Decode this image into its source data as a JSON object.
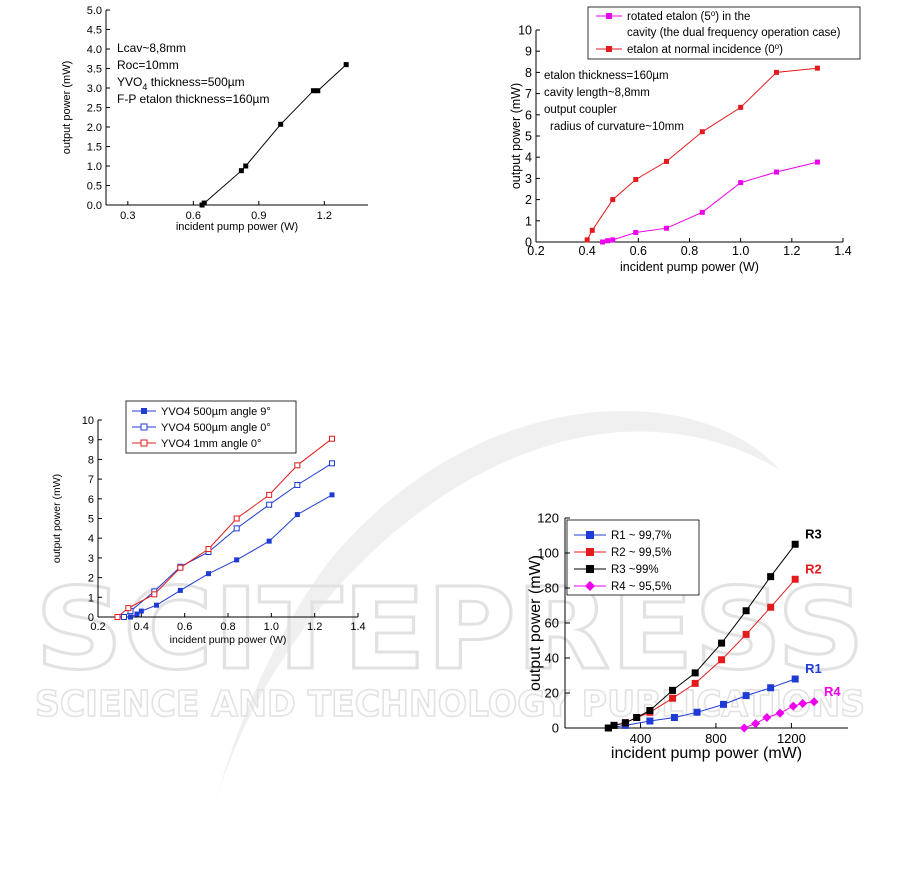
{
  "colors": {
    "black": "#000000",
    "red": "#e41a1c",
    "magenta": "#ee00ee",
    "blue": "#1f3bd6",
    "watermark": "#e4e4e4"
  },
  "watermark": {
    "big": "SCITEPRESS",
    "sub": "SCIENCE AND TECHNOLOGY PUBLICATIONS"
  },
  "chart_data": [
    {
      "type": "line",
      "xlabel": "incident pump power (W)",
      "ylabel": "output power (mW)",
      "xlim": [
        0.2,
        1.4
      ],
      "ylim": [
        0,
        5
      ],
      "xticks": [
        {
          "v": 0.3,
          "t": "0.3"
        },
        {
          "v": 0.6,
          "t": "0.6"
        },
        {
          "v": 0.9,
          "t": "0.9"
        },
        {
          "v": 1.2,
          "t": "1.2"
        }
      ],
      "yticks": [
        {
          "v": 0,
          "t": "0.0"
        },
        {
          "v": 0.5,
          "t": "0.5"
        },
        {
          "v": 1,
          "t": "1.0"
        },
        {
          "v": 1.5,
          "t": "1.5"
        },
        {
          "v": 2,
          "t": "2.0"
        },
        {
          "v": 2.5,
          "t": "2.5"
        },
        {
          "v": 3,
          "t": "3.0"
        },
        {
          "v": 3.5,
          "t": "3.5"
        },
        {
          "v": 4,
          "t": "4.0"
        },
        {
          "v": 4.5,
          "t": "4.5"
        },
        {
          "v": 5,
          "t": "5.0"
        }
      ],
      "annotations": [
        "Lcav~8,8mm",
        "Roc=10mm",
        "YVO4 thickness=500µm",
        "F-P etalon thickness=160µm"
      ],
      "series": [
        {
          "color": "#000000",
          "marker": "square-filled",
          "x": [
            0.64,
            0.65,
            0.82,
            0.84,
            1.0,
            1.15,
            1.17,
            1.3
          ],
          "y": [
            0.0,
            0.05,
            0.88,
            1.0,
            2.07,
            2.93,
            2.93,
            3.6
          ]
        }
      ]
    },
    {
      "type": "line",
      "xlabel": "incident pump power (W)",
      "ylabel": "output power (mW)",
      "xlim": [
        0.2,
        1.4
      ],
      "ylim": [
        0,
        10
      ],
      "xticks": [
        {
          "v": 0.2,
          "t": "0.2"
        },
        {
          "v": 0.4,
          "t": "0.4"
        },
        {
          "v": 0.6,
          "t": "0.6"
        },
        {
          "v": 0.8,
          "t": "0.8"
        },
        {
          "v": 1.0,
          "t": "1.0"
        },
        {
          "v": 1.2,
          "t": "1.2"
        },
        {
          "v": 1.4,
          "t": "1.4"
        }
      ],
      "yticks": [
        {
          "v": 0,
          "t": "0"
        },
        {
          "v": 1,
          "t": "1"
        },
        {
          "v": 2,
          "t": "2"
        },
        {
          "v": 3,
          "t": "3"
        },
        {
          "v": 4,
          "t": "4"
        },
        {
          "v": 5,
          "t": "5"
        },
        {
          "v": 6,
          "t": "6"
        },
        {
          "v": 7,
          "t": "7"
        },
        {
          "v": 8,
          "t": "8"
        },
        {
          "v": 9,
          "t": "9"
        },
        {
          "v": 10,
          "t": "10"
        }
      ],
      "legend": "top-right",
      "annotations": [
        "etalon thickness=160µm",
        "cavity length~8,8mm",
        "output coupler",
        "radius of curvature~10mm"
      ],
      "series": [
        {
          "name": "rotated etalon (5°) in the cavity (the dual frequency operation case)",
          "color": "#ee00ee",
          "marker": "square-filled",
          "x": [
            0.46,
            0.48,
            0.5,
            0.59,
            0.71,
            0.85,
            1.0,
            1.14,
            1.3
          ],
          "y": [
            0.0,
            0.06,
            0.1,
            0.45,
            0.65,
            1.4,
            2.8,
            3.3,
            3.77
          ]
        },
        {
          "name": "etalon at normal incidence (0°)",
          "color": "#e41a1c",
          "marker": "square-filled",
          "x": [
            0.4,
            0.42,
            0.5,
            0.59,
            0.71,
            0.85,
            1.0,
            1.14,
            1.3
          ],
          "y": [
            0.1,
            0.55,
            2.0,
            2.95,
            3.8,
            5.2,
            6.35,
            8.0,
            8.2
          ]
        }
      ]
    },
    {
      "type": "line",
      "xlabel": "incident pump power (W)",
      "ylabel": "output power (mW)",
      "xlim": [
        0.2,
        1.4
      ],
      "ylim": [
        0,
        10
      ],
      "xticks": [
        {
          "v": 0.2,
          "t": "0.2"
        },
        {
          "v": 0.4,
          "t": "0.4"
        },
        {
          "v": 0.6,
          "t": "0.6"
        },
        {
          "v": 0.8,
          "t": "0.8"
        },
        {
          "v": 1.0,
          "t": "1.0"
        },
        {
          "v": 1.2,
          "t": "1.2"
        },
        {
          "v": 1.4,
          "t": "1.4"
        }
      ],
      "yticks": [
        {
          "v": 0,
          "t": "0"
        },
        {
          "v": 1,
          "t": "1"
        },
        {
          "v": 2,
          "t": "2"
        },
        {
          "v": 3,
          "t": "3"
        },
        {
          "v": 4,
          "t": "4"
        },
        {
          "v": 5,
          "t": "5"
        },
        {
          "v": 6,
          "t": "6"
        },
        {
          "v": 7,
          "t": "7"
        },
        {
          "v": 8,
          "t": "8"
        },
        {
          "v": 9,
          "t": "9"
        },
        {
          "v": 10,
          "t": "10"
        }
      ],
      "legend": "top-left",
      "series": [
        {
          "name": "YVO4 500µm angle 9°",
          "color": "#1f3bd6",
          "marker": "square-filled",
          "x": [
            0.35,
            0.38,
            0.4,
            0.47,
            0.58,
            0.71,
            0.84,
            0.99,
            1.12,
            1.28
          ],
          "y": [
            0.0,
            0.15,
            0.3,
            0.6,
            1.35,
            2.2,
            2.9,
            3.85,
            5.2,
            6.2
          ]
        },
        {
          "name": "YVO4 500µm angle 0°",
          "color": "#1f3bd6",
          "marker": "square-open",
          "x": [
            0.32,
            0.35,
            0.46,
            0.58,
            0.71,
            0.84,
            0.99,
            1.12,
            1.28
          ],
          "y": [
            0.0,
            0.3,
            1.3,
            2.55,
            3.3,
            4.5,
            5.7,
            6.7,
            7.8
          ]
        },
        {
          "name": "YVO4 1mm angle 0°",
          "color": "#e41a1c",
          "marker": "square-open",
          "x": [
            0.29,
            0.34,
            0.46,
            0.58,
            0.71,
            0.84,
            0.99,
            1.12,
            1.28
          ],
          "y": [
            0.0,
            0.45,
            1.15,
            2.5,
            3.45,
            5.0,
            6.2,
            7.7,
            9.05
          ]
        }
      ]
    },
    {
      "type": "line",
      "xlabel": "incident pump power (mW)",
      "ylabel": "output power (mW)",
      "xlim": [
        0,
        1500
      ],
      "ylim": [
        0,
        120
      ],
      "xticks": [
        {
          "v": 400,
          "t": "400"
        },
        {
          "v": 800,
          "t": "800"
        },
        {
          "v": 1200,
          "t": "1200"
        }
      ],
      "yticks": [
        {
          "v": 0,
          "t": "0"
        },
        {
          "v": 20,
          "t": "20"
        },
        {
          "v": 40,
          "t": "40"
        },
        {
          "v": 60,
          "t": "60"
        },
        {
          "v": 80,
          "t": "80"
        },
        {
          "v": 100,
          "t": "100"
        },
        {
          "v": 120,
          "t": "120"
        }
      ],
      "legend": "top-left",
      "series": [
        {
          "name": "R1 ~ 99,7%",
          "label": "R1",
          "color": "#1f3bd6",
          "marker": "square-filled",
          "x": [
            230,
            320,
            450,
            580,
            700,
            840,
            960,
            1090,
            1220
          ],
          "y": [
            0,
            1.5,
            4,
            6,
            9,
            13.5,
            18.5,
            23,
            28
          ]
        },
        {
          "name": "R2 ~ 99,5%",
          "label": "R2",
          "color": "#e41a1c",
          "marker": "square-filled",
          "x": [
            230,
            260,
            320,
            380,
            450,
            570,
            690,
            830,
            960,
            1090,
            1220
          ],
          "y": [
            0,
            1.5,
            3,
            6,
            9,
            17,
            25.5,
            39,
            53.5,
            69,
            85
          ]
        },
        {
          "name": "R3 ~99%",
          "label": "R3",
          "color": "#000000",
          "marker": "square-filled",
          "x": [
            230,
            260,
            320,
            380,
            450,
            570,
            690,
            830,
            960,
            1090,
            1220
          ],
          "y": [
            0,
            1.5,
            3,
            6,
            10,
            21.5,
            31.5,
            48.5,
            67,
            86.5,
            105
          ]
        },
        {
          "name": "R4 ~ 95,5%",
          "label": "R4",
          "color": "#ee00ee",
          "marker": "diamond-filled",
          "x": [
            950,
            1010,
            1070,
            1140,
            1210,
            1260,
            1320
          ],
          "y": [
            0,
            2.5,
            6,
            8.5,
            12.5,
            14,
            15
          ]
        }
      ]
    }
  ]
}
